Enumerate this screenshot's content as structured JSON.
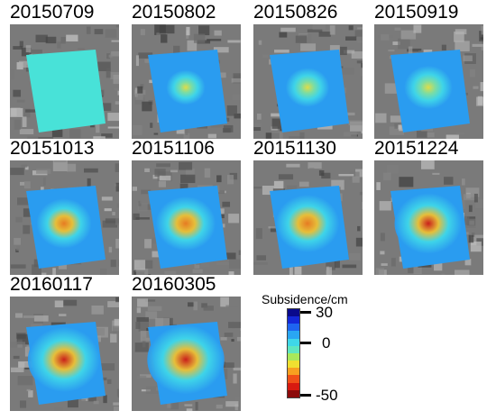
{
  "panels": [
    {
      "date": "20150709",
      "intensity": 0.0
    },
    {
      "date": "20150802",
      "intensity": 0.15
    },
    {
      "date": "20150826",
      "intensity": 0.25
    },
    {
      "date": "20150919",
      "intensity": 0.35
    },
    {
      "date": "20151013",
      "intensity": 0.5
    },
    {
      "date": "20151106",
      "intensity": 0.6
    },
    {
      "date": "20151130",
      "intensity": 0.68
    },
    {
      "date": "20151224",
      "intensity": 0.75
    },
    {
      "date": "20160117",
      "intensity": 0.85
    },
    {
      "date": "20160305",
      "intensity": 0.95
    }
  ],
  "legend": {
    "title": "Subsidence/cm",
    "max_label": "30",
    "zero_label": "0",
    "min_label": "-50",
    "colors": [
      "#0a0a8c",
      "#1428d8",
      "#1e64f0",
      "#2aa6f2",
      "#3fd7e8",
      "#5ee6c0",
      "#a8e85a",
      "#f0e030",
      "#f8a020",
      "#f05018",
      "#d81a10",
      "#8c0a0a"
    ]
  }
}
